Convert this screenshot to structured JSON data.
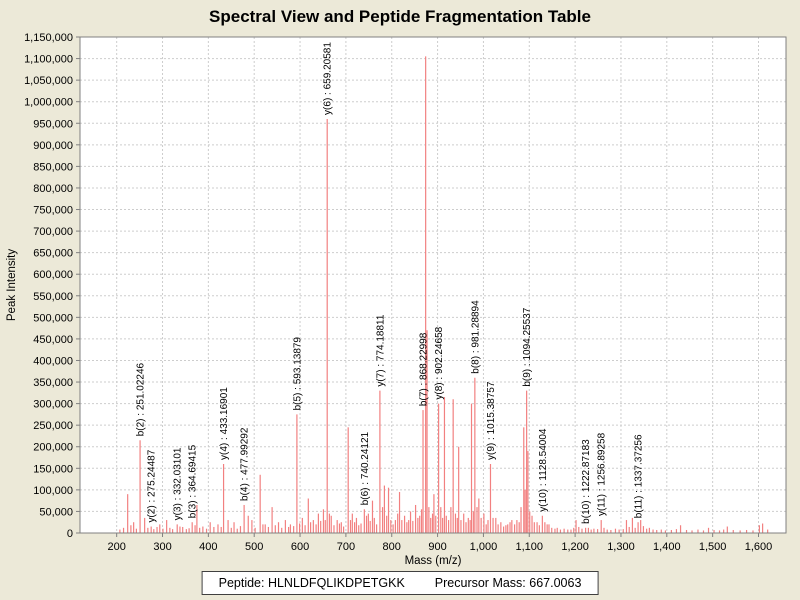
{
  "title": "Spectral View and Peptide Fragmentation Table",
  "footer": {
    "peptide_text": "Peptide: HLNLDFQLIKDPETGKK",
    "precursor_text": "Precursor Mass: 667.0063"
  },
  "chart_data": {
    "type": "bar",
    "title": "Spectral View and Peptide Fragmentation Table",
    "xlabel": "Mass (m/z)",
    "ylabel": "Peak Intensity",
    "xlim": [
      120,
      1660
    ],
    "ylim": [
      0,
      1150000
    ],
    "x_ticks": [
      200,
      300,
      400,
      500,
      600,
      700,
      800,
      900,
      1000,
      1100,
      1200,
      1300,
      1400,
      1500,
      1600
    ],
    "y_tick_step": 50000,
    "grid": true,
    "legend": false,
    "colors": {
      "page_bg": "#ece9d8",
      "plot_bg": "#ffffff",
      "grid": "#cdcdcd",
      "border": "#808080",
      "peak": "#f28080",
      "text": "#000000"
    },
    "labeled_peaks": [
      {
        "ion": "b(2)",
        "mz": 251.02246,
        "intensity": 215000,
        "label": "b(2) : 251.02246"
      },
      {
        "ion": "y(2)",
        "mz": 275.24487,
        "intensity": 15000,
        "label": "y(2) : 275.24487"
      },
      {
        "ion": "y(3)",
        "mz": 332.03101,
        "intensity": 20000,
        "label": "y(3) : 332.03101"
      },
      {
        "ion": "b(3)",
        "mz": 364.69415,
        "intensity": 25000,
        "label": "b(3) : 364.69415"
      },
      {
        "ion": "y(4)",
        "mz": 433.16901,
        "intensity": 160000,
        "label": "y(4) : 433.16901"
      },
      {
        "ion": "b(4)",
        "mz": 477.99292,
        "intensity": 65000,
        "label": "b(4) : 477.99292"
      },
      {
        "ion": "b(5)",
        "mz": 593.13879,
        "intensity": 275000,
        "label": "b(5) : 593.13879"
      },
      {
        "ion": "y(6)",
        "mz": 659.20581,
        "intensity": 960000,
        "label": "y(6) : 659.20581"
      },
      {
        "ion": "b(6)",
        "mz": 740.24121,
        "intensity": 55000,
        "label": "b(6) : 740.24121"
      },
      {
        "ion": "y(7)",
        "mz": 774.18811,
        "intensity": 330000,
        "label": "y(7) : 774.18811"
      },
      {
        "ion": "b(7)",
        "mz": 868.22998,
        "intensity": 285000,
        "label": "b(7) : 868.22998"
      },
      {
        "ion": "y(8)",
        "mz": 902.24658,
        "intensity": 300000,
        "label": "y(8) : 902.24658"
      },
      {
        "ion": "b(8)",
        "mz": 981.28894,
        "intensity": 360000,
        "label": "b(8) : 981.28894"
      },
      {
        "ion": "y(9)",
        "mz": 1015.38757,
        "intensity": 160000,
        "label": "y(9) : 1015.38757"
      },
      {
        "ion": "b(9)",
        "mz": 1094.25537,
        "intensity": 330000,
        "label": "b(9) : 1094.25537"
      },
      {
        "ion": "y(10)",
        "mz": 1128.54004,
        "intensity": 40000,
        "label": "y(10) : 1128.54004"
      },
      {
        "ion": "b(10)",
        "mz": 1222.87183,
        "intensity": 12000,
        "label": "b(10) : 1222.87183"
      },
      {
        "ion": "y(11)",
        "mz": 1256.89258,
        "intensity": 30000,
        "label": "y(11) : 1256.89258"
      },
      {
        "ion": "b(11)",
        "mz": 1337.37256,
        "intensity": 25000,
        "label": "b(11) : 1337.37256"
      }
    ],
    "unlabeled_peaks": [
      [
        207,
        8000
      ],
      [
        215,
        12000
      ],
      [
        224,
        90000
      ],
      [
        231,
        18000
      ],
      [
        237,
        25000
      ],
      [
        243,
        10000
      ],
      [
        261,
        35000
      ],
      [
        268,
        12000
      ],
      [
        281,
        9000
      ],
      [
        288,
        14000
      ],
      [
        294,
        20000
      ],
      [
        301,
        10000
      ],
      [
        309,
        30000
      ],
      [
        316,
        12000
      ],
      [
        322,
        9000
      ],
      [
        338,
        15000
      ],
      [
        344,
        14000
      ],
      [
        352,
        9000
      ],
      [
        358,
        11000
      ],
      [
        371,
        18000
      ],
      [
        375,
        65000
      ],
      [
        381,
        12000
      ],
      [
        388,
        15000
      ],
      [
        396,
        10000
      ],
      [
        404,
        25000
      ],
      [
        412,
        14000
      ],
      [
        421,
        20000
      ],
      [
        428,
        14000
      ],
      [
        443,
        30000
      ],
      [
        450,
        12000
      ],
      [
        456,
        25000
      ],
      [
        463,
        10000
      ],
      [
        470,
        16000
      ],
      [
        487,
        40000
      ],
      [
        495,
        30000
      ],
      [
        502,
        12000
      ],
      [
        513,
        135000
      ],
      [
        519,
        20000
      ],
      [
        524,
        20000
      ],
      [
        531,
        14000
      ],
      [
        539,
        60000
      ],
      [
        546,
        18000
      ],
      [
        553,
        25000
      ],
      [
        560,
        12000
      ],
      [
        568,
        30000
      ],
      [
        575,
        14000
      ],
      [
        579,
        20000
      ],
      [
        586,
        16000
      ],
      [
        599,
        22000
      ],
      [
        605,
        35000
      ],
      [
        611,
        18000
      ],
      [
        618,
        80000
      ],
      [
        623,
        25000
      ],
      [
        629,
        30000
      ],
      [
        635,
        20000
      ],
      [
        640,
        45000
      ],
      [
        645,
        28000
      ],
      [
        651,
        55000
      ],
      [
        655,
        30000
      ],
      [
        664,
        45000
      ],
      [
        668,
        40000
      ],
      [
        674,
        18000
      ],
      [
        681,
        30000
      ],
      [
        686,
        22000
      ],
      [
        690,
        25000
      ],
      [
        695,
        15000
      ],
      [
        705,
        245000
      ],
      [
        710,
        30000
      ],
      [
        714,
        45000
      ],
      [
        719,
        25000
      ],
      [
        723,
        35000
      ],
      [
        728,
        18000
      ],
      [
        733,
        22000
      ],
      [
        745,
        40000
      ],
      [
        749,
        45000
      ],
      [
        753,
        28000
      ],
      [
        758,
        75000
      ],
      [
        762,
        35000
      ],
      [
        767,
        20000
      ],
      [
        780,
        60000
      ],
      [
        784,
        110000
      ],
      [
        789,
        40000
      ],
      [
        793,
        105000
      ],
      [
        798,
        30000
      ],
      [
        803,
        20000
      ],
      [
        808,
        30000
      ],
      [
        813,
        45000
      ],
      [
        817,
        95000
      ],
      [
        822,
        30000
      ],
      [
        828,
        40000
      ],
      [
        833,
        25000
      ],
      [
        837,
        30000
      ],
      [
        841,
        50000
      ],
      [
        846,
        28000
      ],
      [
        852,
        65000
      ],
      [
        857,
        35000
      ],
      [
        861,
        40000
      ],
      [
        865,
        55000
      ],
      [
        874,
        1105000
      ],
      [
        877,
        470000
      ],
      [
        881,
        60000
      ],
      [
        885,
        35000
      ],
      [
        889,
        45000
      ],
      [
        892,
        90000
      ],
      [
        896,
        40000
      ],
      [
        907,
        60000
      ],
      [
        911,
        35000
      ],
      [
        915,
        315000
      ],
      [
        919,
        40000
      ],
      [
        924,
        30000
      ],
      [
        929,
        60000
      ],
      [
        934,
        310000
      ],
      [
        939,
        45000
      ],
      [
        943,
        35000
      ],
      [
        946,
        200000
      ],
      [
        951,
        30000
      ],
      [
        957,
        45000
      ],
      [
        962,
        25000
      ],
      [
        967,
        35000
      ],
      [
        971,
        30000
      ],
      [
        974,
        300000
      ],
      [
        978,
        50000
      ],
      [
        986,
        60000
      ],
      [
        990,
        80000
      ],
      [
        995,
        35000
      ],
      [
        1001,
        45000
      ],
      [
        1006,
        20000
      ],
      [
        1010,
        30000
      ],
      [
        1021,
        35000
      ],
      [
        1027,
        35000
      ],
      [
        1032,
        20000
      ],
      [
        1038,
        25000
      ],
      [
        1044,
        15000
      ],
      [
        1049,
        18000
      ],
      [
        1053,
        20000
      ],
      [
        1058,
        25000
      ],
      [
        1062,
        30000
      ],
      [
        1068,
        20000
      ],
      [
        1073,
        30000
      ],
      [
        1078,
        25000
      ],
      [
        1082,
        60000
      ],
      [
        1088,
        245000
      ],
      [
        1091,
        100000
      ],
      [
        1097,
        190000
      ],
      [
        1101,
        50000
      ],
      [
        1106,
        40000
      ],
      [
        1111,
        25000
      ],
      [
        1117,
        25000
      ],
      [
        1122,
        18000
      ],
      [
        1134,
        25000
      ],
      [
        1139,
        20000
      ],
      [
        1143,
        20000
      ],
      [
        1149,
        12000
      ],
      [
        1156,
        10000
      ],
      [
        1161,
        12000
      ],
      [
        1168,
        8000
      ],
      [
        1176,
        10000
      ],
      [
        1184,
        8000
      ],
      [
        1191,
        8000
      ],
      [
        1197,
        12000
      ],
      [
        1202,
        30000
      ],
      [
        1208,
        14000
      ],
      [
        1215,
        10000
      ],
      [
        1229,
        12000
      ],
      [
        1235,
        8000
      ],
      [
        1241,
        10000
      ],
      [
        1249,
        9000
      ],
      [
        1263,
        12000
      ],
      [
        1270,
        8000
      ],
      [
        1278,
        7000
      ],
      [
        1288,
        10000
      ],
      [
        1296,
        8000
      ],
      [
        1305,
        9000
      ],
      [
        1312,
        30000
      ],
      [
        1318,
        14000
      ],
      [
        1325,
        35000
      ],
      [
        1331,
        12000
      ],
      [
        1343,
        30000
      ],
      [
        1349,
        16000
      ],
      [
        1356,
        10000
      ],
      [
        1362,
        12000
      ],
      [
        1370,
        8000
      ],
      [
        1378,
        7000
      ],
      [
        1388,
        8000
      ],
      [
        1397,
        6000
      ],
      [
        1410,
        7000
      ],
      [
        1421,
        9000
      ],
      [
        1430,
        18000
      ],
      [
        1443,
        7000
      ],
      [
        1455,
        6000
      ],
      [
        1468,
        8000
      ],
      [
        1480,
        6000
      ],
      [
        1491,
        12000
      ],
      [
        1503,
        7000
      ],
      [
        1515,
        6000
      ],
      [
        1524,
        8000
      ],
      [
        1532,
        15000
      ],
      [
        1545,
        7000
      ],
      [
        1560,
        6000
      ],
      [
        1574,
        7000
      ],
      [
        1588,
        6000
      ],
      [
        1602,
        18000
      ],
      [
        1609,
        22000
      ],
      [
        1620,
        8000
      ]
    ]
  }
}
